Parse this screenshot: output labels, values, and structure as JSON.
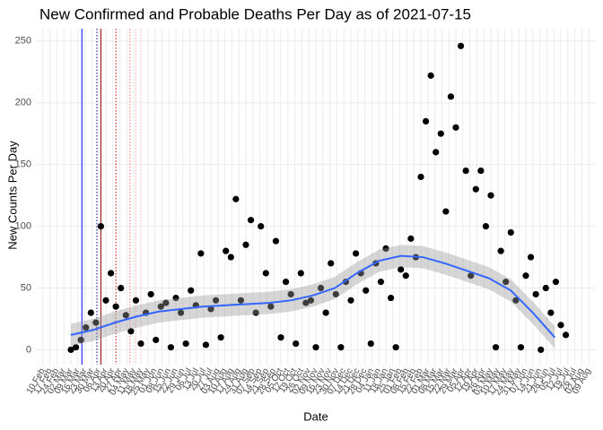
{
  "chart_data": {
    "type": "scatter",
    "title": "New Confirmed and Probable Deaths Per Day as of 2021-07-15",
    "x_label": "Date",
    "y_label": "New Counts Per Day",
    "xlim": [
      -7,
      553
    ],
    "ylim": [
      -12,
      260
    ],
    "yticks": [
      0,
      50,
      100,
      150,
      200,
      250
    ],
    "xticks": [
      {
        "value": 0,
        "label": "10 Feb"
      },
      {
        "value": 7,
        "label": "17 Feb"
      },
      {
        "value": 14,
        "label": "24 Feb"
      },
      {
        "value": 21,
        "label": "02 Mar"
      },
      {
        "value": 28,
        "label": "09 Mar"
      },
      {
        "value": 35,
        "label": "16 Mar"
      },
      {
        "value": 42,
        "label": "23 Mar"
      },
      {
        "value": 49,
        "label": "30 Mar"
      },
      {
        "value": 56,
        "label": "06 Apr"
      },
      {
        "value": 63,
        "label": "13 Apr"
      },
      {
        "value": 70,
        "label": "20 Apr"
      },
      {
        "value": 77,
        "label": "27 Apr"
      },
      {
        "value": 84,
        "label": "04 May"
      },
      {
        "value": 91,
        "label": "11 May"
      },
      {
        "value": 98,
        "label": "18 May"
      },
      {
        "value": 105,
        "label": "25 May"
      },
      {
        "value": 112,
        "label": "01 Jun"
      },
      {
        "value": 119,
        "label": "08 Jun"
      },
      {
        "value": 126,
        "label": "15 Jun"
      },
      {
        "value": 133,
        "label": "22 Jun"
      },
      {
        "value": 140,
        "label": "29 Jun"
      },
      {
        "value": 147,
        "label": "06 Jul"
      },
      {
        "value": 154,
        "label": "13 Jul"
      },
      {
        "value": 161,
        "label": "20 Jul"
      },
      {
        "value": 168,
        "label": "27 Jul"
      },
      {
        "value": 175,
        "label": "03 Aug"
      },
      {
        "value": 182,
        "label": "10 Aug"
      },
      {
        "value": 189,
        "label": "17 Aug"
      },
      {
        "value": 196,
        "label": "24 Aug"
      },
      {
        "value": 203,
        "label": "31 Aug"
      },
      {
        "value": 210,
        "label": "07 Sep"
      },
      {
        "value": 217,
        "label": "14 Sep"
      },
      {
        "value": 224,
        "label": "21 Sep"
      },
      {
        "value": 231,
        "label": "28 Sep"
      },
      {
        "value": 238,
        "label": "05 Oct"
      },
      {
        "value": 245,
        "label": "12 Oct"
      },
      {
        "value": 252,
        "label": "19 Oct"
      },
      {
        "value": 259,
        "label": "26 Oct"
      },
      {
        "value": 266,
        "label": "02 Nov"
      },
      {
        "value": 273,
        "label": "09 Nov"
      },
      {
        "value": 280,
        "label": "16 Nov"
      },
      {
        "value": 287,
        "label": "23 Nov"
      },
      {
        "value": 294,
        "label": "30 Nov"
      },
      {
        "value": 301,
        "label": "07 Dec"
      },
      {
        "value": 308,
        "label": "14 Dec"
      },
      {
        "value": 315,
        "label": "21 Dec"
      },
      {
        "value": 322,
        "label": "28 Dec"
      },
      {
        "value": 329,
        "label": "04 Jan"
      },
      {
        "value": 336,
        "label": "11 Jan"
      },
      {
        "value": 343,
        "label": "18 Jan"
      },
      {
        "value": 350,
        "label": "25 Jan"
      },
      {
        "value": 357,
        "label": "01 Feb"
      },
      {
        "value": 364,
        "label": "08 Feb"
      },
      {
        "value": 371,
        "label": "15 Feb"
      },
      {
        "value": 378,
        "label": "22 Feb"
      },
      {
        "value": 385,
        "label": "01 Mar"
      },
      {
        "value": 392,
        "label": "08 Mar"
      },
      {
        "value": 399,
        "label": "15 Mar"
      },
      {
        "value": 406,
        "label": "22 Mar"
      },
      {
        "value": 413,
        "label": "29 Mar"
      },
      {
        "value": 420,
        "label": "05 Apr"
      },
      {
        "value": 427,
        "label": "12 Apr"
      },
      {
        "value": 434,
        "label": "19 Apr"
      },
      {
        "value": 441,
        "label": "26 Apr"
      },
      {
        "value": 448,
        "label": "03 May"
      },
      {
        "value": 455,
        "label": "10 May"
      },
      {
        "value": 462,
        "label": "17 May"
      },
      {
        "value": 469,
        "label": "24 May"
      },
      {
        "value": 476,
        "label": "31 May"
      },
      {
        "value": 483,
        "label": "07 Jun"
      },
      {
        "value": 490,
        "label": "14 Jun"
      },
      {
        "value": 497,
        "label": "21 Jun"
      },
      {
        "value": 504,
        "label": "28 Jun"
      },
      {
        "value": 511,
        "label": "05 Jul"
      },
      {
        "value": 518,
        "label": "12 Jul"
      },
      {
        "value": 525,
        "label": "19 Jul"
      },
      {
        "value": 532,
        "label": "26 Jul"
      },
      {
        "value": 539,
        "label": "02 Aug"
      },
      {
        "value": 546,
        "label": "09 Aug"
      }
    ],
    "points": {
      "color": "#000000",
      "x": [
        28,
        33,
        38,
        43,
        48,
        53,
        58,
        63,
        68,
        73,
        78,
        83,
        88,
        93,
        98,
        103,
        108,
        113,
        118,
        123,
        128,
        133,
        138,
        143,
        148,
        153,
        158,
        163,
        168,
        173,
        178,
        183,
        188,
        193,
        198,
        203,
        208,
        213,
        218,
        223,
        228,
        233,
        238,
        243,
        248,
        253,
        258,
        263,
        268,
        273,
        278,
        283,
        288,
        293,
        298,
        303,
        308,
        313,
        318,
        323,
        328,
        333,
        338,
        343,
        348,
        353,
        358,
        363,
        368,
        373,
        378,
        383,
        388,
        393,
        398,
        403,
        408,
        413,
        418,
        423,
        428,
        433,
        438,
        443,
        448,
        453,
        458,
        463,
        468,
        473,
        478,
        483,
        488,
        493,
        498,
        503,
        508,
        513,
        518,
        523
      ],
      "y": [
        0,
        2,
        8,
        18,
        30,
        22,
        100,
        40,
        62,
        35,
        50,
        28,
        15,
        40,
        5,
        30,
        45,
        8,
        35,
        38,
        2,
        42,
        30,
        5,
        48,
        36,
        78,
        4,
        33,
        40,
        10,
        80,
        75,
        122,
        40,
        85,
        105,
        30,
        100,
        62,
        35,
        88,
        10,
        55,
        45,
        5,
        62,
        38,
        40,
        2,
        50,
        30,
        70,
        45,
        2,
        55,
        40,
        78,
        62,
        48,
        5,
        70,
        55,
        82,
        42,
        2,
        65,
        60,
        90,
        75,
        140,
        185,
        222,
        160,
        175,
        112,
        205,
        180,
        246,
        145,
        60,
        130,
        145,
        100,
        125,
        2,
        80,
        55,
        95,
        40,
        2,
        60,
        75,
        45,
        0,
        50,
        30,
        55,
        20,
        12
      ]
    },
    "smooth": {
      "color": "#3366ff",
      "x": [
        28,
        50,
        72,
        94,
        116,
        138,
        160,
        182,
        204,
        226,
        248,
        270,
        292,
        314,
        336,
        358,
        380,
        402,
        424,
        446,
        468,
        490,
        512
      ],
      "y": [
        12,
        16,
        22,
        27,
        31,
        33,
        35,
        36,
        37,
        38,
        40,
        44,
        50,
        62,
        72,
        76,
        75,
        70,
        64,
        58,
        48,
        30,
        10
      ]
    },
    "vlines": [
      {
        "x": 39,
        "color": "#0000ff",
        "dash": false
      },
      {
        "x": 54,
        "color": "#00008b",
        "dash": true
      },
      {
        "x": 58,
        "color": "#8b0000",
        "dash": false
      },
      {
        "x": 73,
        "color": "#cd0000",
        "dash": true
      },
      {
        "x": 87,
        "color": "#ff6a6a",
        "dash": true
      },
      {
        "x": 93,
        "color": "#ffaeb9",
        "dash": true
      },
      {
        "x": 98,
        "color": "#ffc0cb",
        "dash": true
      }
    ]
  }
}
